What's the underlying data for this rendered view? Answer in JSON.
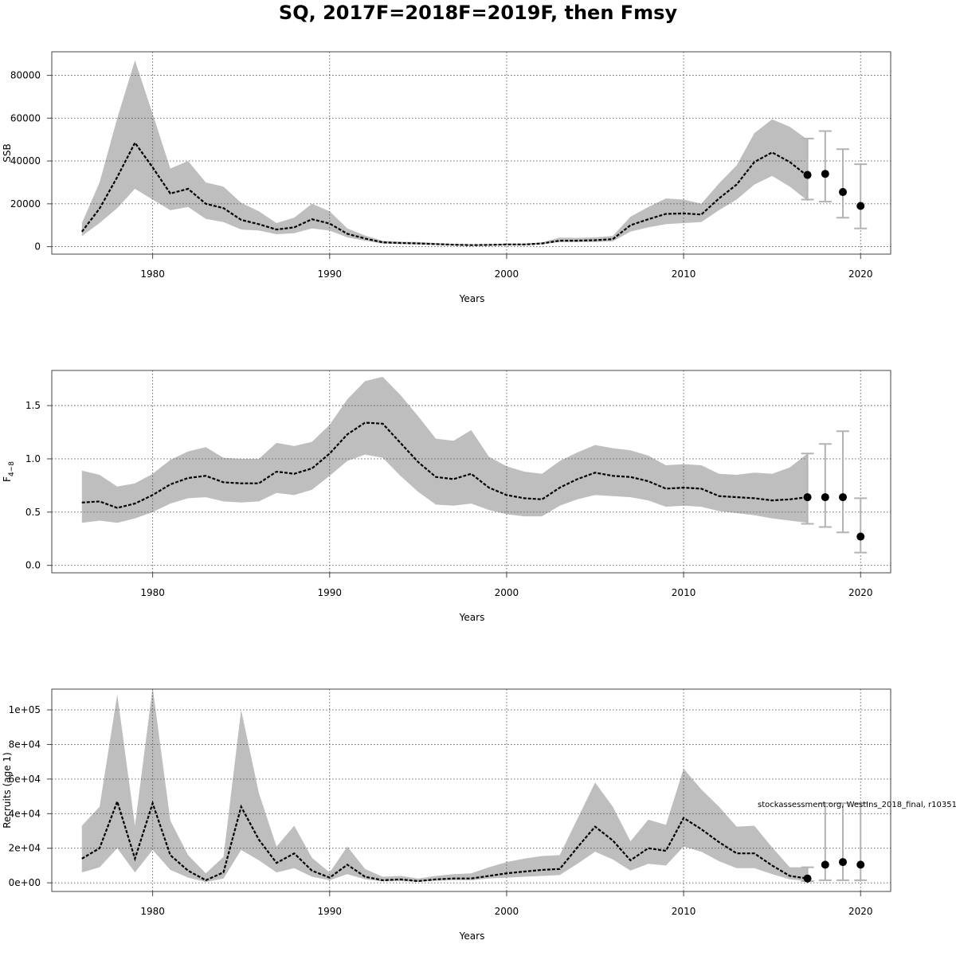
{
  "title": "SQ, 2017F=2018F=2019F, then Fmsy",
  "credit": "stockassessment.org, WestIns_2018_final, r10351",
  "colors": {
    "band": "#bebebe",
    "line": "#000000",
    "errorbar": "#b3b3b3",
    "grid": "#555555"
  },
  "chart_data": [
    {
      "type": "line",
      "ylabel": "SSB",
      "xlabel": "Years",
      "xlim": [
        1974.3,
        2021.7
      ],
      "ylim": [
        -3500,
        91000
      ],
      "x_ticks": [
        1980,
        1990,
        2000,
        2010,
        2020
      ],
      "y_ticks": [
        0,
        20000,
        40000,
        60000,
        80000
      ],
      "y_tick_labels": [
        "0",
        "20000",
        "40000",
        "60000",
        "80000"
      ],
      "grid": true,
      "band_end_vertical": true,
      "years": [
        1976,
        1977,
        1978,
        1979,
        1980,
        1981,
        1982,
        1983,
        1984,
        1985,
        1986,
        1987,
        1988,
        1989,
        1990,
        1991,
        1992,
        1993,
        1994,
        1995,
        1996,
        1997,
        1998,
        1999,
        2000,
        2001,
        2002,
        2003,
        2004,
        2005,
        2006,
        2007,
        2008,
        2009,
        2010,
        2011,
        2012,
        2013,
        2014,
        2015,
        2016,
        2017
      ],
      "estimate": [
        7000,
        17800,
        32500,
        48500,
        37000,
        24800,
        27000,
        20000,
        18000,
        12500,
        10500,
        8000,
        9000,
        12800,
        10800,
        6000,
        3800,
        2000,
        1700,
        1500,
        1200,
        900,
        700,
        800,
        1000,
        1000,
        1500,
        2800,
        2800,
        3000,
        3500,
        10000,
        12800,
        15300,
        15500,
        15000,
        22500,
        29000,
        39500,
        44000,
        39500,
        33000
      ],
      "lower": [
        5000,
        11000,
        18000,
        27000,
        22000,
        17000,
        18500,
        13000,
        11500,
        8000,
        7500,
        5800,
        6300,
        8500,
        7500,
        4300,
        2800,
        1400,
        1200,
        1100,
        800,
        600,
        400,
        500,
        700,
        700,
        1200,
        2100,
        2100,
        2200,
        2500,
        7000,
        9000,
        10500,
        11000,
        11500,
        17000,
        22000,
        29000,
        33000,
        28000,
        21500
      ],
      "upper": [
        11000,
        30000,
        60000,
        87000,
        62000,
        36500,
        40000,
        30000,
        28000,
        20500,
        16500,
        11000,
        13500,
        20000,
        16500,
        8500,
        5200,
        2700,
        2300,
        2200,
        1700,
        1300,
        1100,
        1100,
        1400,
        1400,
        2000,
        4200,
        4100,
        4300,
        5000,
        14000,
        18500,
        22500,
        22000,
        20000,
        29500,
        38000,
        53000,
        59500,
        56000,
        50000
      ],
      "forecast_years": [
        2017,
        2018,
        2019,
        2020
      ],
      "forecast": [
        33500,
        34000,
        25500,
        19000
      ],
      "forecast_lower": [
        22000,
        21000,
        13500,
        8500
      ],
      "forecast_upper": [
        50500,
        54000,
        45500,
        38500
      ]
    },
    {
      "type": "line",
      "ylabel": "F",
      "ylabel_subscript": "4−8",
      "xlabel": "Years",
      "xlim": [
        1974.3,
        2021.7
      ],
      "ylim": [
        -0.07,
        1.83
      ],
      "x_ticks": [
        1980,
        1990,
        2000,
        2010,
        2020
      ],
      "y_ticks": [
        0,
        0.5,
        1,
        1.5
      ],
      "y_tick_labels": [
        "0.0",
        "0.5",
        "1.0",
        "1.5"
      ],
      "grid": true,
      "band_end_vertical": true,
      "years": [
        1976,
        1977,
        1978,
        1979,
        1980,
        1981,
        1982,
        1983,
        1984,
        1985,
        1986,
        1987,
        1988,
        1989,
        1990,
        1991,
        1992,
        1993,
        1994,
        1995,
        1996,
        1997,
        1998,
        1999,
        2000,
        2001,
        2002,
        2003,
        2004,
        2005,
        2006,
        2007,
        2008,
        2009,
        2010,
        2011,
        2012,
        2013,
        2014,
        2015,
        2016,
        2017
      ],
      "estimate": [
        0.59,
        0.6,
        0.54,
        0.58,
        0.66,
        0.76,
        0.82,
        0.84,
        0.78,
        0.77,
        0.77,
        0.88,
        0.86,
        0.91,
        1.05,
        1.23,
        1.34,
        1.33,
        1.15,
        0.97,
        0.83,
        0.81,
        0.86,
        0.73,
        0.66,
        0.63,
        0.62,
        0.73,
        0.81,
        0.87,
        0.84,
        0.83,
        0.79,
        0.72,
        0.73,
        0.72,
        0.65,
        0.64,
        0.63,
        0.61,
        0.62,
        0.64
      ],
      "lower": [
        0.4,
        0.42,
        0.4,
        0.44,
        0.5,
        0.58,
        0.63,
        0.64,
        0.6,
        0.59,
        0.6,
        0.68,
        0.66,
        0.71,
        0.84,
        0.98,
        1.04,
        1.01,
        0.84,
        0.69,
        0.57,
        0.56,
        0.58,
        0.52,
        0.48,
        0.46,
        0.46,
        0.56,
        0.62,
        0.66,
        0.65,
        0.64,
        0.61,
        0.55,
        0.56,
        0.55,
        0.51,
        0.49,
        0.47,
        0.44,
        0.42,
        0.4
      ],
      "upper": [
        0.89,
        0.85,
        0.74,
        0.77,
        0.86,
        0.99,
        1.07,
        1.11,
        1.01,
        1.0,
        1.0,
        1.15,
        1.12,
        1.16,
        1.32,
        1.56,
        1.73,
        1.77,
        1.6,
        1.4,
        1.19,
        1.17,
        1.27,
        1.02,
        0.93,
        0.88,
        0.86,
        0.98,
        1.06,
        1.13,
        1.1,
        1.08,
        1.03,
        0.94,
        0.95,
        0.94,
        0.86,
        0.85,
        0.87,
        0.86,
        0.92,
        1.05
      ],
      "forecast_years": [
        2017,
        2018,
        2019,
        2020
      ],
      "forecast": [
        0.64,
        0.64,
        0.64,
        0.27
      ],
      "forecast_lower": [
        0.39,
        0.36,
        0.31,
        0.12
      ],
      "forecast_upper": [
        1.05,
        1.14,
        1.26,
        0.63
      ]
    },
    {
      "type": "line",
      "ylabel": "Recruits (age 1)",
      "xlabel": "Years",
      "xlim": [
        1974.3,
        2021.7
      ],
      "ylim": [
        -5000,
        112000
      ],
      "x_ticks": [
        1980,
        1990,
        2000,
        2010,
        2020
      ],
      "y_ticks": [
        0,
        20000,
        40000,
        60000,
        80000,
        100000
      ],
      "y_tick_labels": [
        "0e+00",
        "2e+04",
        "4e+04",
        "6e+04",
        "8e+04",
        "1e+05"
      ],
      "grid": true,
      "band_end_vertical": false,
      "years": [
        1976,
        1977,
        1978,
        1979,
        1980,
        1981,
        1982,
        1983,
        1984,
        1985,
        1986,
        1987,
        1988,
        1989,
        1990,
        1991,
        1992,
        1993,
        1994,
        1995,
        1996,
        1997,
        1998,
        1999,
        2000,
        2001,
        2002,
        2003,
        2004,
        2005,
        2006,
        2007,
        2008,
        2009,
        2010,
        2011,
        2012,
        2013,
        2014,
        2015,
        2016,
        2017
      ],
      "estimate": [
        14000,
        20000,
        47000,
        14000,
        46000,
        16000,
        7000,
        1500,
        6000,
        44000,
        25000,
        11500,
        17000,
        7000,
        3000,
        10500,
        3500,
        1500,
        2000,
        1000,
        2000,
        2500,
        2500,
        4000,
        5500,
        6500,
        7500,
        8000,
        20500,
        32500,
        24500,
        13000,
        20000,
        18500,
        37500,
        31000,
        23500,
        17000,
        17000,
        10000,
        4000,
        2500
      ],
      "lower": [
        6000,
        9000,
        20000,
        6000,
        19000,
        7500,
        3000,
        500,
        2500,
        19000,
        13000,
        6000,
        8500,
        3500,
        1500,
        5000,
        2000,
        800,
        1000,
        600,
        1200,
        1500,
        1500,
        2500,
        3000,
        3500,
        4000,
        4500,
        11000,
        18000,
        13500,
        7000,
        11000,
        10000,
        21000,
        18000,
        12500,
        8500,
        8500,
        5000,
        2000,
        1000
      ],
      "upper": [
        33000,
        44000,
        109000,
        33000,
        113000,
        36000,
        16000,
        5500,
        15000,
        100000,
        52000,
        21000,
        33000,
        14500,
        6000,
        21000,
        8000,
        3500,
        4000,
        2500,
        4000,
        5000,
        5500,
        9000,
        12000,
        14000,
        15500,
        16000,
        37000,
        58000,
        44000,
        24000,
        36500,
        33500,
        66000,
        54000,
        44000,
        32500,
        33000,
        20500,
        9000,
        9000
      ],
      "forecast_years": [
        2017,
        2018,
        2019,
        2020
      ],
      "forecast": [
        2500,
        10500,
        12000,
        10500
      ],
      "forecast_lower": [
        1000,
        1500,
        1500,
        1500
      ],
      "forecast_upper": [
        9000,
        46000,
        46000,
        46000
      ]
    }
  ]
}
